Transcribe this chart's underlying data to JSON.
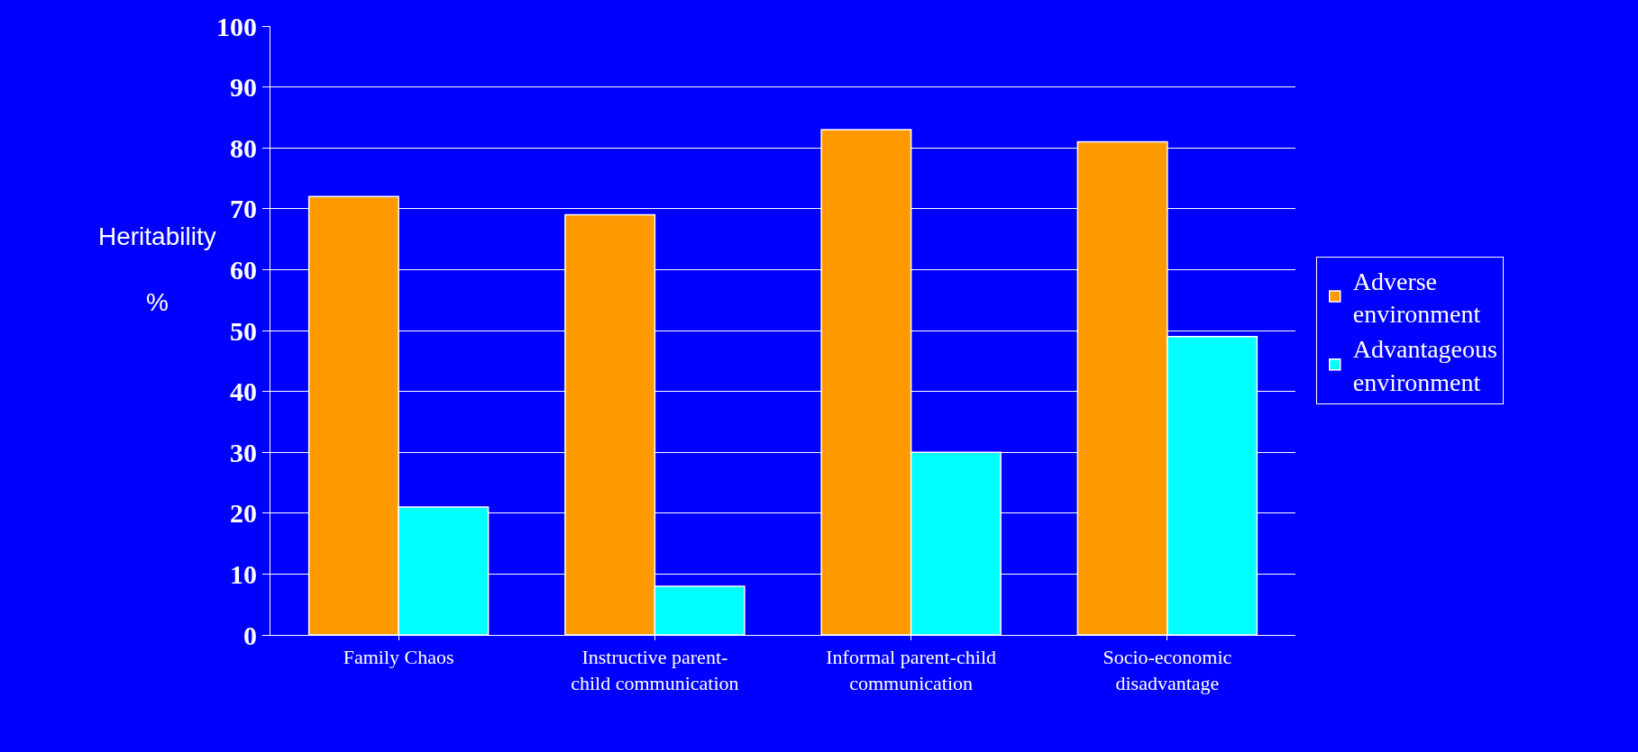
{
  "chart_data": {
    "type": "bar",
    "categories": [
      "Family Chaos",
      "Instructive parent-child communication",
      "Informal parent-child communication",
      "Socio-economic disadvantage"
    ],
    "series": [
      {
        "name": "Adverse environment",
        "color": "#ff9900",
        "values": [
          72,
          69,
          83,
          81
        ]
      },
      {
        "name": "Advantageous environment",
        "color": "#00ffff",
        "values": [
          21,
          8,
          30,
          49
        ]
      }
    ],
    "ylabel": "Heritability %",
    "ylim": [
      0,
      100
    ],
    "yticks": [
      0,
      10,
      20,
      30,
      40,
      50,
      60,
      70,
      80,
      90,
      100
    ],
    "grid": "y",
    "legend": "right"
  }
}
